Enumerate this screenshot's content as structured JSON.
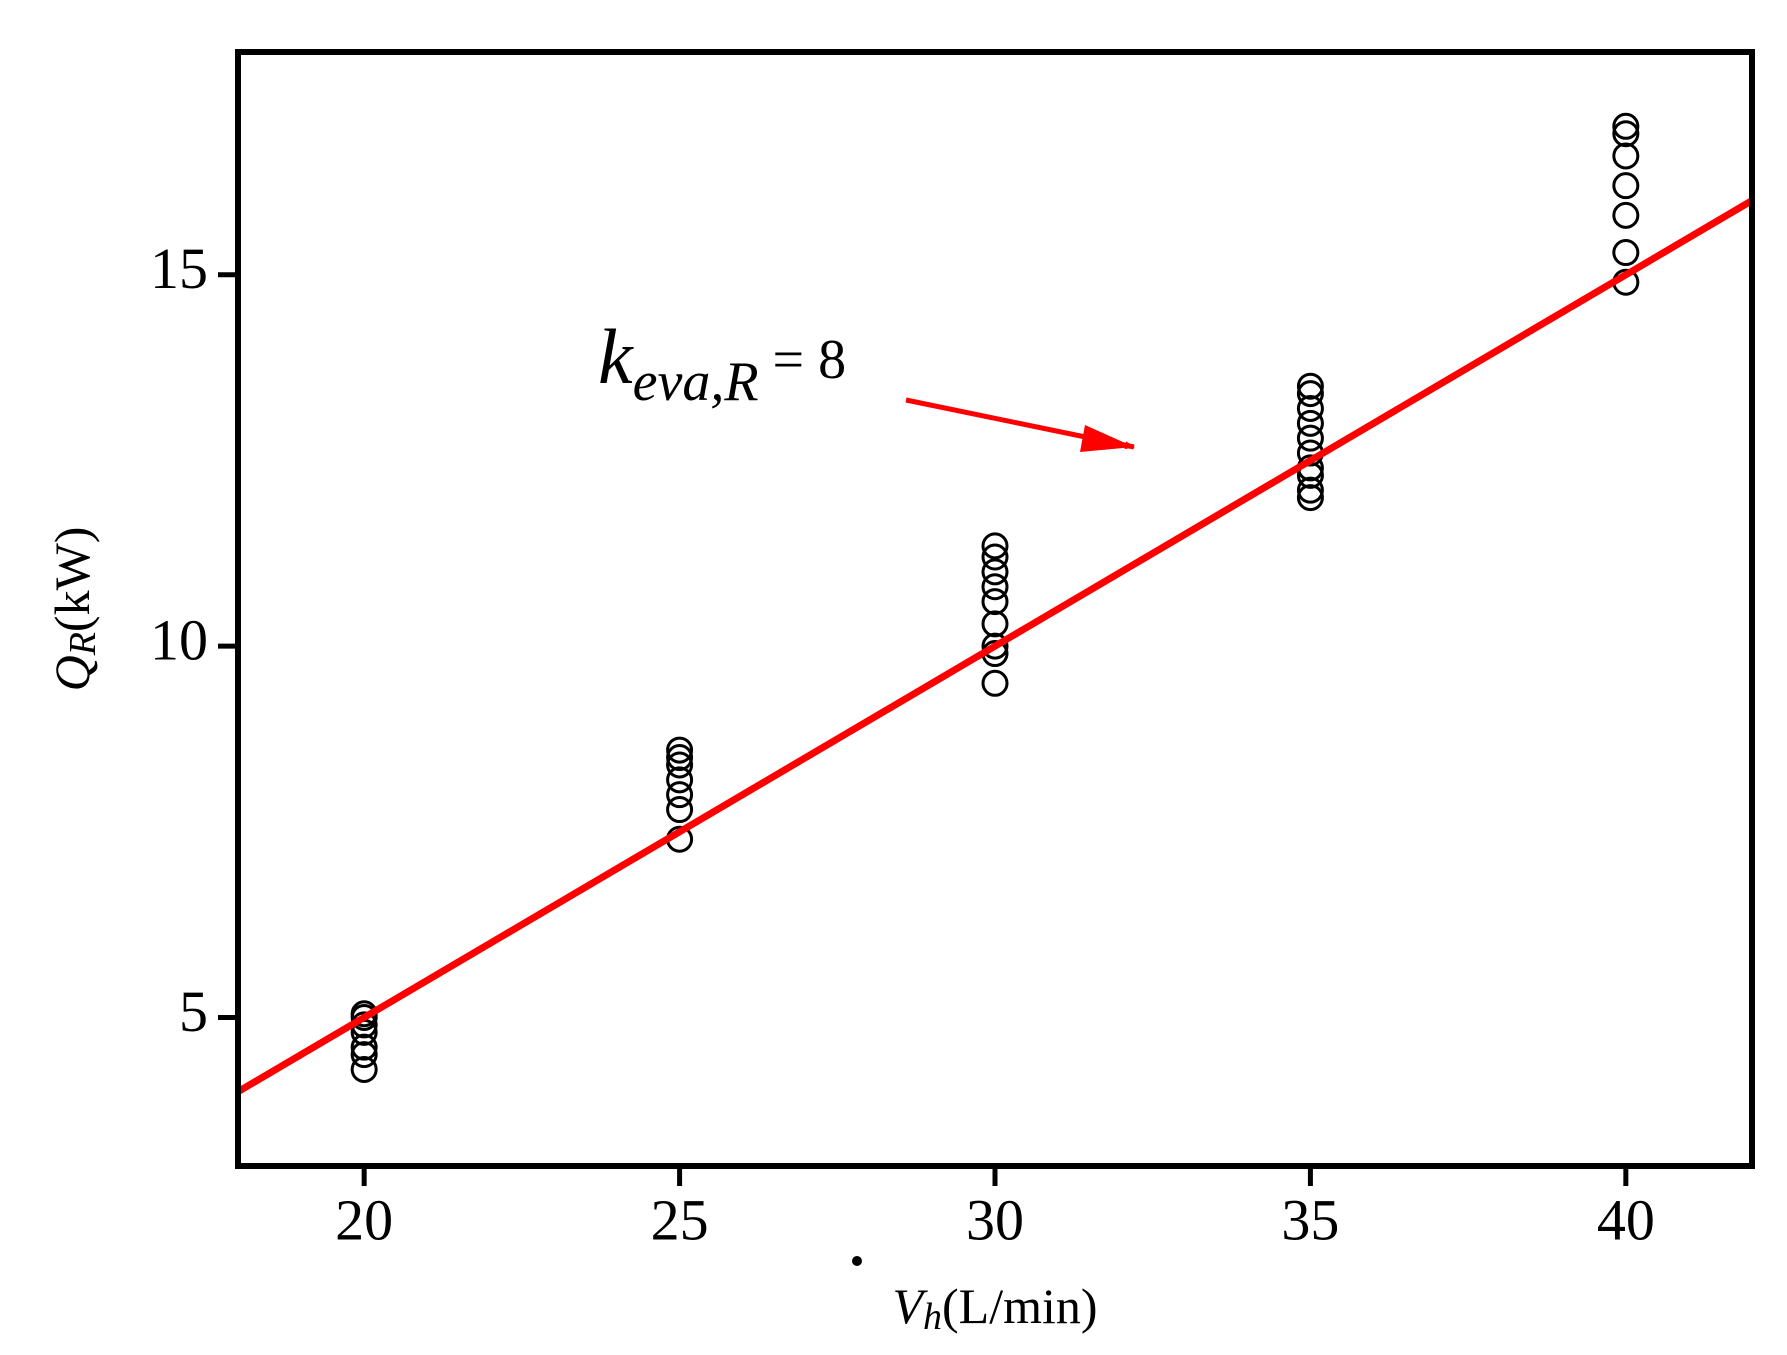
{
  "chart_data": {
    "type": "scatter",
    "x_label": {
      "symbol": "V",
      "subscript": "h",
      "unit": "(L/min)"
    },
    "y_label": {
      "symbol": "Q",
      "subscript": "R",
      "unit": "(kW)"
    },
    "annotation": {
      "symbol": "k",
      "subscript": "eva,R",
      "text": "= 8"
    },
    "xlim": [
      18,
      42
    ],
    "ylim": [
      3,
      18
    ],
    "xticks": [
      20,
      25,
      30,
      35,
      40
    ],
    "yticks": [
      5,
      10,
      15
    ],
    "series": [
      {
        "type": "scatter",
        "color": "#000000",
        "x": [
          20,
          20,
          20,
          20,
          20,
          20,
          20,
          25,
          25,
          25,
          25,
          25,
          25,
          25,
          30,
          30,
          30,
          30,
          30,
          30,
          30,
          30,
          30,
          35,
          35,
          35,
          35,
          35,
          35,
          35,
          35,
          35,
          35,
          40,
          40,
          40,
          40,
          40,
          40,
          40
        ],
        "values": [
          4.3,
          4.5,
          4.6,
          4.8,
          4.9,
          5.0,
          5.05,
          7.4,
          7.8,
          8.0,
          8.2,
          8.4,
          8.5,
          8.6,
          9.5,
          9.9,
          10.0,
          10.3,
          10.6,
          10.8,
          11.0,
          11.2,
          11.35,
          12.0,
          12.1,
          12.3,
          12.4,
          12.6,
          12.8,
          13.0,
          13.2,
          13.4,
          13.5,
          14.9,
          15.3,
          15.8,
          16.2,
          16.6,
          16.9,
          17.0
        ]
      },
      {
        "type": "line",
        "color": "#ff0000",
        "x": [
          18,
          42
        ],
        "values": [
          4.0,
          16.0
        ]
      }
    ]
  }
}
